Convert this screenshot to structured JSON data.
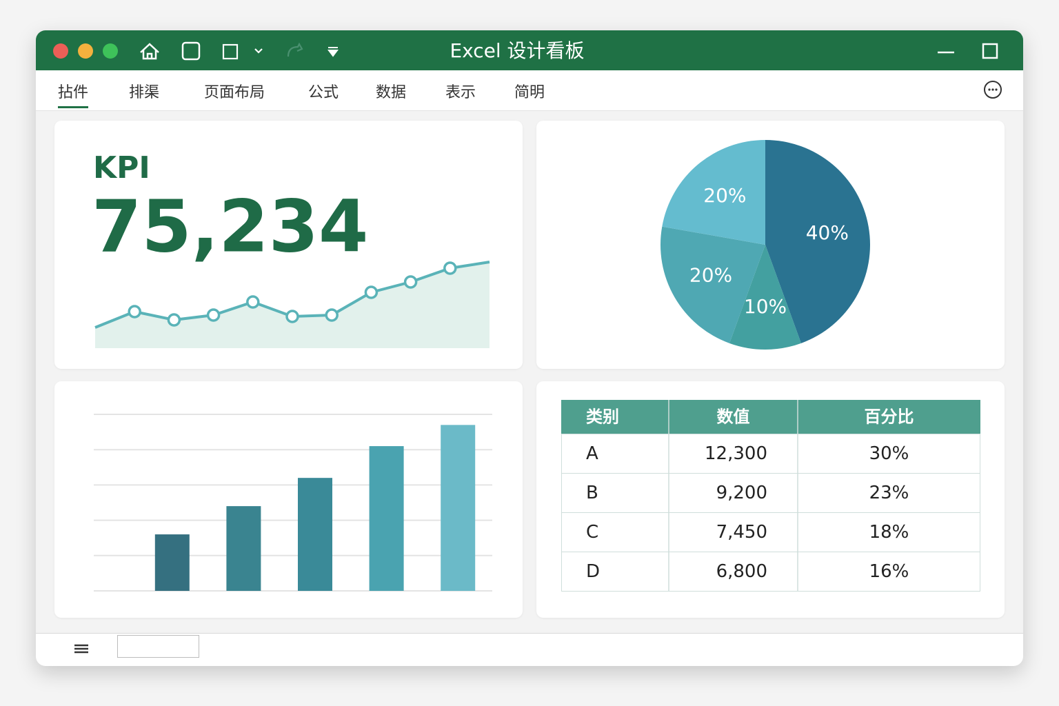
{
  "window": {
    "title": "Excel 设计看板",
    "tabs": [
      "拈件",
      "排渠",
      "页面布局",
      "公式",
      "数据",
      "表示",
      "简明"
    ]
  },
  "kpi": {
    "label": "KPI",
    "value": "75,234"
  },
  "chart_data": [
    {
      "type": "area",
      "values": [
        30,
        53,
        41,
        48,
        67,
        46,
        48,
        81,
        96,
        116,
        125
      ],
      "ylim": [
        0,
        130
      ],
      "color": "#5ab3b8",
      "fill": "#e2f1ec"
    },
    {
      "type": "pie",
      "values": [
        40,
        10,
        20,
        20
      ],
      "value_labels": [
        "40%",
        "10%",
        "20%",
        "20%"
      ],
      "colors": [
        "#2a7391",
        "#43a0a0",
        "#4fa8b3",
        "#64bccf"
      ]
    },
    {
      "type": "bar",
      "categories": [
        null,
        null,
        null,
        null,
        null
      ],
      "values": [
        1.6,
        2.4,
        3.2,
        4.1,
        4.7
      ],
      "colors": [
        "#357080",
        "#3a8490",
        "#3a8a98",
        "#4aa3b0",
        "#6bbac8"
      ],
      "ylim": [
        0,
        5
      ],
      "yticks": [
        0,
        1,
        2,
        3,
        4,
        5
      ],
      "grid": true
    }
  ],
  "table": {
    "columns": [
      "类别",
      "数值",
      "百分比"
    ],
    "rows": [
      [
        "A",
        "12,300",
        "30%"
      ],
      [
        "B",
        "9,200",
        "23%"
      ],
      [
        "C",
        "7,450",
        "18%"
      ],
      [
        "D",
        "6,800",
        "16%"
      ]
    ]
  }
}
